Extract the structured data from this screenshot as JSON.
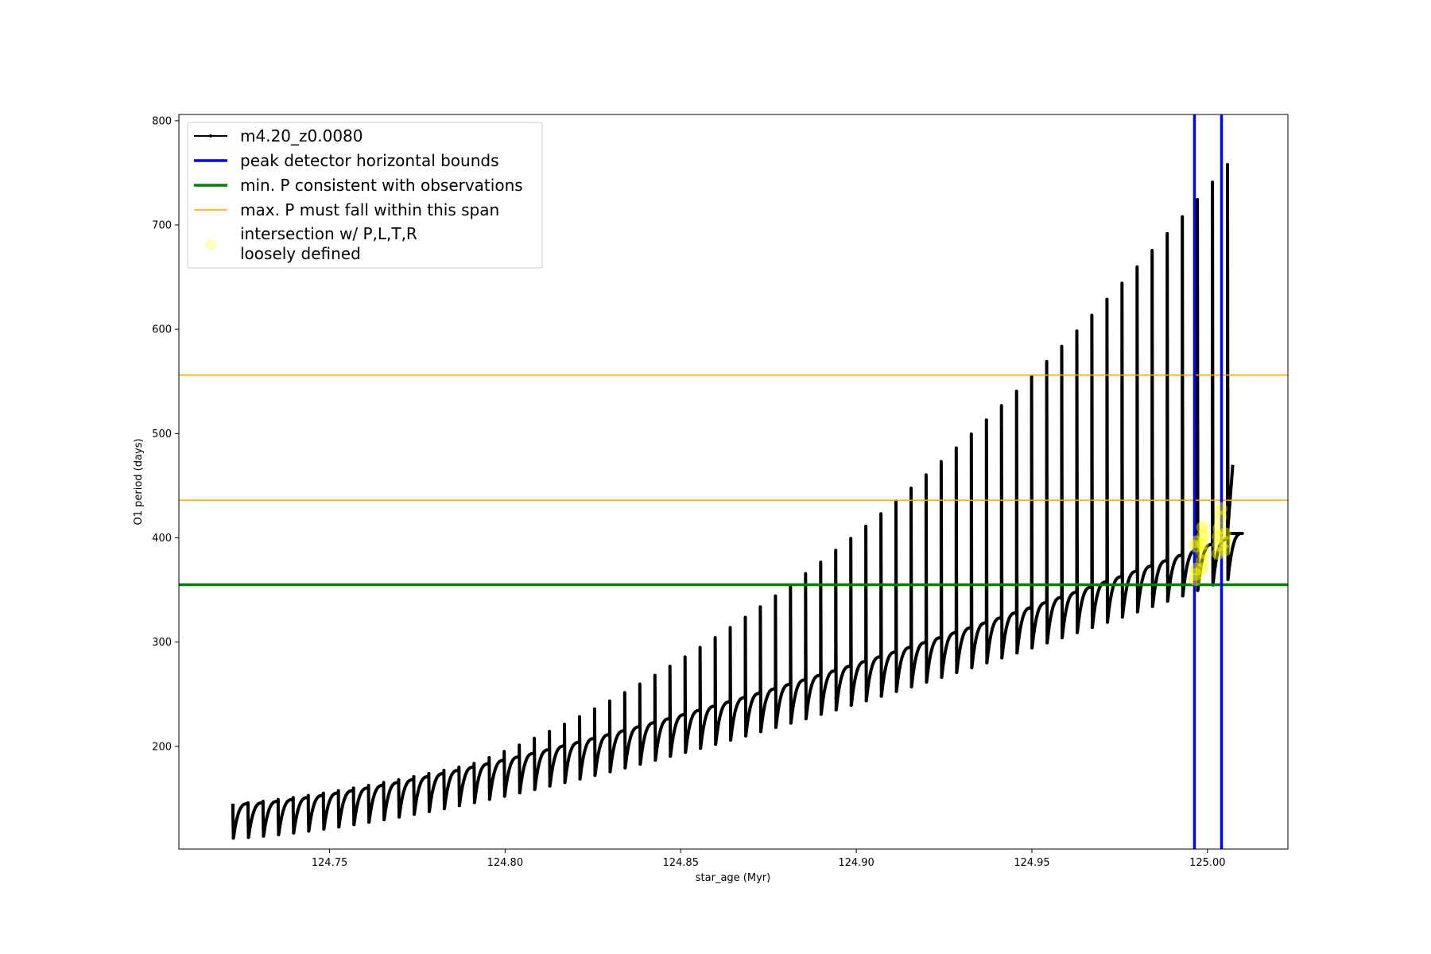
{
  "chart_data": {
    "type": "line",
    "title": "",
    "xlabel": "star_age (Myr)",
    "ylabel": "O1 period (days)",
    "xlim": [
      124.7071,
      125.0229
    ],
    "ylim": [
      101.5,
      806
    ],
    "x_ticks": [
      124.75,
      124.8,
      124.85,
      124.9,
      124.95,
      125.0
    ],
    "x_tick_labels": [
      "124.75",
      "124.80",
      "124.85",
      "124.90",
      "124.95",
      "125.00"
    ],
    "y_ticks": [
      200,
      300,
      400,
      500,
      600,
      700,
      800
    ],
    "y_tick_labels": [
      "200",
      "300",
      "400",
      "500",
      "600",
      "700",
      "800"
    ],
    "legend_position": "upper-left",
    "legend": [
      {
        "label": "m4.20_z0.0080",
        "style": "line-marker",
        "color": "#000000"
      },
      {
        "label": "peak detector horizontal bounds",
        "style": "line",
        "color": "#0000ff"
      },
      {
        "label": "min. P consistent with observations",
        "style": "line",
        "color": "#008000"
      },
      {
        "label": "max. P must fall within this span",
        "style": "line",
        "color": "#ffa500"
      },
      {
        "label": "intersection w/ P,L,T,R",
        "label_line2": "loosely defined",
        "style": "marker",
        "color": "#ffff00"
      }
    ],
    "series_track": {
      "name": "m4.20_z0.0080",
      "color": "#000000",
      "age_start": 124.7225,
      "age_end": 125.0057,
      "n_pulses": 67,
      "peak_period_start": 135,
      "peak_period_end": 758,
      "trough_period_start": 112,
      "trough_period_end": 360,
      "pulse_top_start": 145,
      "pulse_top_end": 470
    },
    "vertical_lines": {
      "name": "peak detector horizontal bounds",
      "color": "#0000ff",
      "x": [
        124.9963,
        125.004
      ]
    },
    "green_line": {
      "name": "min. P consistent with observations",
      "color": "#008000",
      "y": 355
    },
    "orange_lines": {
      "name": "max. P must fall within this span",
      "color": "#ffa500",
      "y": [
        436,
        556
      ]
    },
    "intersection_points": {
      "name": "intersection w/ P,L,T,R loosely defined",
      "color": "#ffff00",
      "points": [
        [
          124.9966,
          360
        ],
        [
          124.9967,
          365
        ],
        [
          124.9968,
          370
        ],
        [
          124.9966,
          392
        ],
        [
          124.9968,
          396
        ],
        [
          124.9985,
          370
        ],
        [
          124.9986,
          378
        ],
        [
          124.9987,
          386
        ],
        [
          124.9986,
          394
        ],
        [
          124.9987,
          402
        ],
        [
          124.9986,
          410
        ],
        [
          125.003,
          385
        ],
        [
          125.0032,
          393
        ],
        [
          125.0031,
          401
        ],
        [
          125.0033,
          409
        ],
        [
          125.0038,
          420
        ],
        [
          125.0039,
          428
        ],
        [
          125.0048,
          388
        ],
        [
          125.0049,
          396
        ],
        [
          125.005,
          404
        ]
      ]
    }
  }
}
